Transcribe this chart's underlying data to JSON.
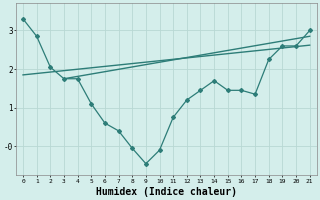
{
  "line1_x": [
    0,
    1,
    2,
    3,
    4,
    5,
    6,
    7,
    8,
    9,
    10,
    11,
    12,
    13,
    14,
    15,
    16,
    17,
    18,
    19,
    20,
    21
  ],
  "line1_y": [
    3.3,
    2.85,
    2.05,
    1.75,
    1.75,
    1.1,
    0.6,
    0.4,
    -0.05,
    -0.45,
    -0.1,
    0.75,
    1.2,
    1.45,
    1.7,
    1.45,
    1.45,
    1.35,
    2.25,
    2.6,
    2.6,
    3.0
  ],
  "line2_x": [
    0,
    21
  ],
  "line2_y": [
    1.85,
    2.62
  ],
  "line3_x": [
    3,
    21
  ],
  "line3_y": [
    1.75,
    2.85
  ],
  "color": "#2d7d78",
  "bg_color": "#d4eeeb",
  "grid_color": "#b8d8d4",
  "xlabel": "Humidex (Indice chaleur)",
  "xlabel_fontsize": 7,
  "xlim": [
    -0.5,
    21.5
  ],
  "ylim": [
    -0.75,
    3.7
  ],
  "xticks": [
    0,
    1,
    2,
    3,
    4,
    5,
    6,
    7,
    8,
    9,
    10,
    11,
    12,
    13,
    14,
    15,
    16,
    17,
    18,
    19,
    20,
    21
  ]
}
